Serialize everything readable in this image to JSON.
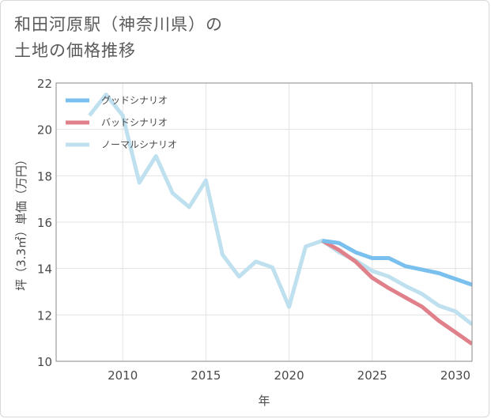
{
  "title": {
    "line1": "和田河原駅（神奈川県）の",
    "line2": "土地の価格推移"
  },
  "chart_data": {
    "type": "line",
    "title": "和田河原駅（神奈川県）の土地の価格推移",
    "xlabel": "年",
    "ylabel": "坪（3.3㎡）単価（万円）",
    "xlim": [
      2006,
      2031
    ],
    "ylim": [
      10,
      22
    ],
    "xticks": [
      2010,
      2015,
      2020,
      2025,
      2030
    ],
    "yticks": [
      10,
      12,
      14,
      16,
      18,
      20,
      22
    ],
    "grid": true,
    "legend_position": "top-left",
    "series": [
      {
        "name": "グッドシナリオ",
        "color": "#79c0ee",
        "x": [
          2022,
          2023,
          2024,
          2025,
          2026,
          2027,
          2028,
          2029,
          2030,
          2031
        ],
        "y": [
          15.2,
          15.1,
          14.7,
          14.45,
          14.45,
          14.1,
          13.95,
          13.8,
          13.55,
          13.3
        ]
      },
      {
        "name": "バッドシナリオ",
        "color": "#e0808a",
        "x": [
          2022,
          2023,
          2024,
          2025,
          2026,
          2027,
          2028,
          2029,
          2030,
          2031
        ],
        "y": [
          15.2,
          14.8,
          14.3,
          13.6,
          13.15,
          12.75,
          12.35,
          11.75,
          11.25,
          10.75
        ]
      },
      {
        "name": "ノーマルシナリオ",
        "color": "#bfe0ee",
        "x": [
          2008,
          2009,
          2010,
          2011,
          2012,
          2013,
          2014,
          2015,
          2016,
          2017,
          2018,
          2019,
          2020,
          2021,
          2022,
          2023,
          2024,
          2025,
          2026,
          2027,
          2028,
          2029,
          2030,
          2031
        ],
        "y": [
          20.6,
          21.5,
          20.6,
          17.7,
          18.85,
          17.25,
          16.65,
          17.8,
          14.6,
          13.65,
          14.3,
          14.05,
          12.35,
          14.95,
          15.2,
          14.7,
          14.35,
          13.9,
          13.65,
          13.25,
          12.9,
          12.4,
          12.15,
          11.6
        ]
      }
    ]
  }
}
